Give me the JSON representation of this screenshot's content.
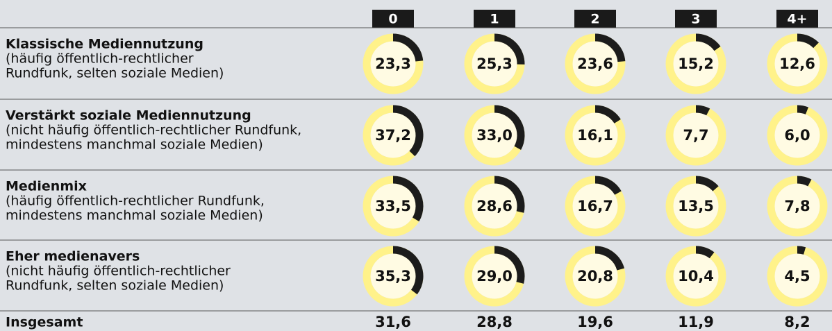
{
  "chart_data": {
    "type": "donut-table",
    "categories": [
      "0",
      "1",
      "2",
      "3",
      "4+"
    ],
    "series": [
      {
        "name": "Klassische Mediennutzung",
        "description": [
          "(häufig öffentlich-rechtlicher",
          "Rundfunk, selten soziale Medien)"
        ],
        "values": [
          23.3,
          25.3,
          23.6,
          15.2,
          12.6
        ],
        "value_labels": [
          "23,3",
          "25,3",
          "23,6",
          "15,2",
          "12,6"
        ]
      },
      {
        "name": "Verstärkt soziale Mediennutzung",
        "description": [
          "(nicht häufig öffentlich-rechtlicher Rundfunk,",
          "mindestens manchmal soziale Medien)"
        ],
        "values": [
          37.2,
          33.0,
          16.1,
          7.7,
          6.0
        ],
        "value_labels": [
          "37,2",
          "33,0",
          "16,1",
          "7,7",
          "6,0"
        ]
      },
      {
        "name": "Medienmix",
        "description": [
          "(häufig öffentlich-rechtlicher Rundfunk,",
          "mindestens manchmal soziale Medien)"
        ],
        "values": [
          33.5,
          28.6,
          16.7,
          13.5,
          7.8
        ],
        "value_labels": [
          "33,5",
          "28,6",
          "16,7",
          "13,5",
          "7,8"
        ]
      },
      {
        "name": "Eher medienavers",
        "description": [
          "(nicht häufig öffentlich-rechtlicher",
          "Rundfunk, selten soziale Medien)"
        ],
        "values": [
          35.3,
          29.0,
          20.8,
          10.4,
          4.5
        ],
        "value_labels": [
          "35,3",
          "29,0",
          "20,8",
          "10,4",
          "4,5"
        ]
      }
    ],
    "total": {
      "name": "Insgesamt",
      "values": [
        31.6,
        28.8,
        19.6,
        11.9,
        8.2
      ],
      "value_labels": [
        "31,6",
        "28,8",
        "19,6",
        "11,9",
        "8,2"
      ]
    },
    "ylim": [
      0,
      100
    ],
    "colors": {
      "value": "#1c1c1c",
      "rest": "#fff28a",
      "inner": "#fffbe3"
    }
  }
}
